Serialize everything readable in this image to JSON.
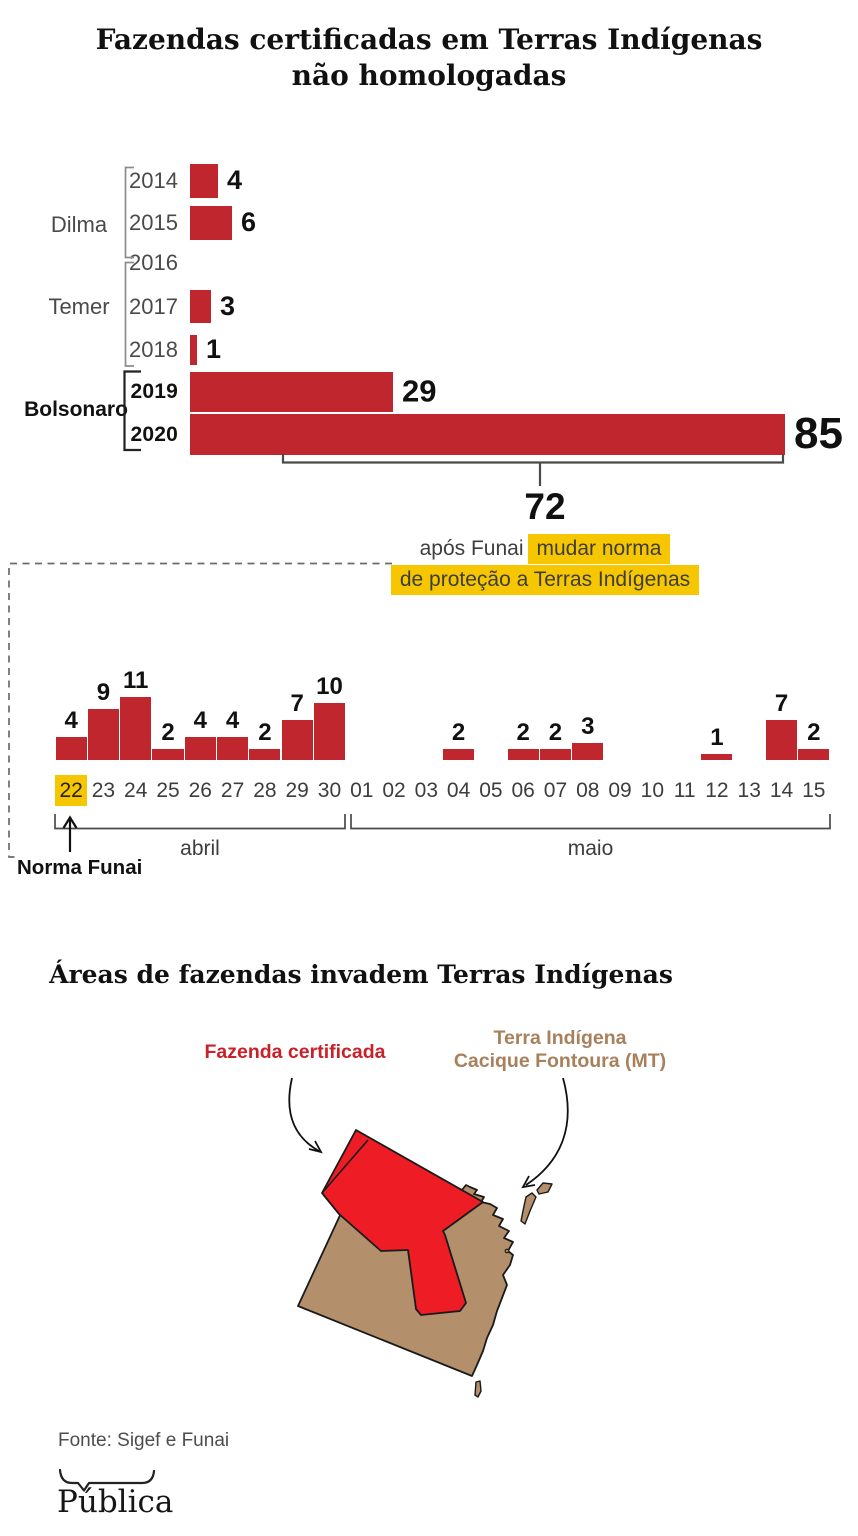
{
  "title": {
    "line1": "Fazendas certificadas em Terras Indígenas",
    "line2": "não homologadas"
  },
  "colors": {
    "bar_red": "#c0262d",
    "map_red": "#ee1c25",
    "map_brown": "#b3906b",
    "highlight_yellow": "#f6c700",
    "legend_red_text": "#ca2128",
    "legend_brown_text": "#a8815c"
  },
  "chart_data": [
    {
      "type": "bar",
      "orientation": "horizontal",
      "title": "Fazendas certificadas em Terras Indígenas não homologadas",
      "categories": [
        "2014",
        "2015",
        "2016",
        "2017",
        "2018",
        "2019",
        "2020"
      ],
      "values": [
        4,
        6,
        0,
        3,
        1,
        29,
        85
      ],
      "groups": [
        {
          "label": "Dilma",
          "years": [
            "2014",
            "2015",
            "2016"
          ]
        },
        {
          "label": "Temer",
          "years": [
            "2016",
            "2017",
            "2018"
          ]
        },
        {
          "label": "Bolsonaro",
          "years": [
            "2019",
            "2020"
          ]
        }
      ],
      "annotation": {
        "value": 72,
        "text_plain": "após Funai",
        "highlight_line1": "mudar norma",
        "highlight_line2": "de proteção a Terras Indígenas"
      }
    },
    {
      "type": "bar",
      "orientation": "vertical",
      "categories": [
        "22",
        "23",
        "24",
        "25",
        "26",
        "27",
        "28",
        "29",
        "30",
        "01",
        "02",
        "03",
        "04",
        "05",
        "06",
        "07",
        "08",
        "09",
        "10",
        "11",
        "12",
        "13",
        "14",
        "15"
      ],
      "values": [
        4,
        9,
        11,
        2,
        4,
        4,
        2,
        7,
        10,
        0,
        0,
        0,
        2,
        0,
        2,
        2,
        3,
        0,
        0,
        0,
        1,
        0,
        7,
        2
      ],
      "month_groups": [
        {
          "label": "abril",
          "days": [
            "22",
            "23",
            "24",
            "25",
            "26",
            "27",
            "28",
            "29",
            "30"
          ]
        },
        {
          "label": "maio",
          "days": [
            "01",
            "02",
            "03",
            "04",
            "05",
            "06",
            "07",
            "08",
            "09",
            "10",
            "11",
            "12",
            "13",
            "14",
            "15"
          ]
        }
      ],
      "highlighted_category": "22",
      "annotation_label": "Norma Funai"
    }
  ],
  "map_section": {
    "title": "Áreas de fazendas invadem Terras Indígenas",
    "legend_red": "Fazenda certificada",
    "legend_brown_line1": "Terra Indígena",
    "legend_brown_line2": "Cacique Fontoura (MT)"
  },
  "footer": {
    "source": "Fonte: Sigef e Funai",
    "logo_text": "Pública"
  }
}
